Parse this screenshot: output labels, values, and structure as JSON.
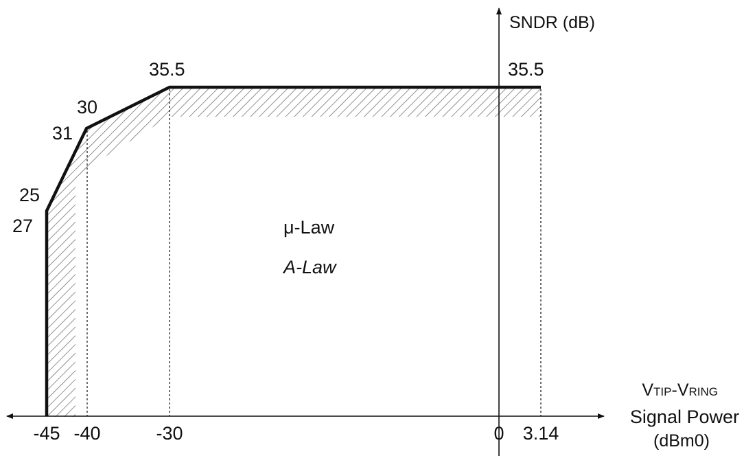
{
  "chart_data": {
    "type": "line",
    "y_axis_label": "SNDR (dB)",
    "x_axis_label": {
      "symbol": {
        "v1": "V",
        "v1_sub": "TIP",
        "dash": "-",
        "v2": "V",
        "v2_sub": "RING"
      },
      "line1": "Signal Power",
      "line2": "(dBm0)"
    },
    "x_ticks": [
      "-45",
      "-40",
      "-30",
      "0",
      "3.14"
    ],
    "x_tick_values": [
      -45,
      -40,
      -30,
      0,
      3.14
    ],
    "series": [
      {
        "name": "μ-Law",
        "x": [
          -45,
          -40,
          -30,
          3.14
        ],
        "y": [
          25,
          30,
          35.5,
          35.5
        ],
        "labels": [
          "25",
          "30",
          "35.5",
          "35.5"
        ]
      },
      {
        "name": "A-Law",
        "x": [
          -45,
          -40,
          -30,
          3.14
        ],
        "y": [
          27,
          31,
          35.5,
          35.5
        ],
        "labels": [
          "27",
          "31",
          "35.5",
          "35.5"
        ]
      }
    ],
    "legend": [
      "μ-Law",
      "A-Law"
    ],
    "hatched_region": "between curve and inner boundary",
    "grid": false,
    "line_color": "#111111",
    "hatch_color": "#555555"
  }
}
